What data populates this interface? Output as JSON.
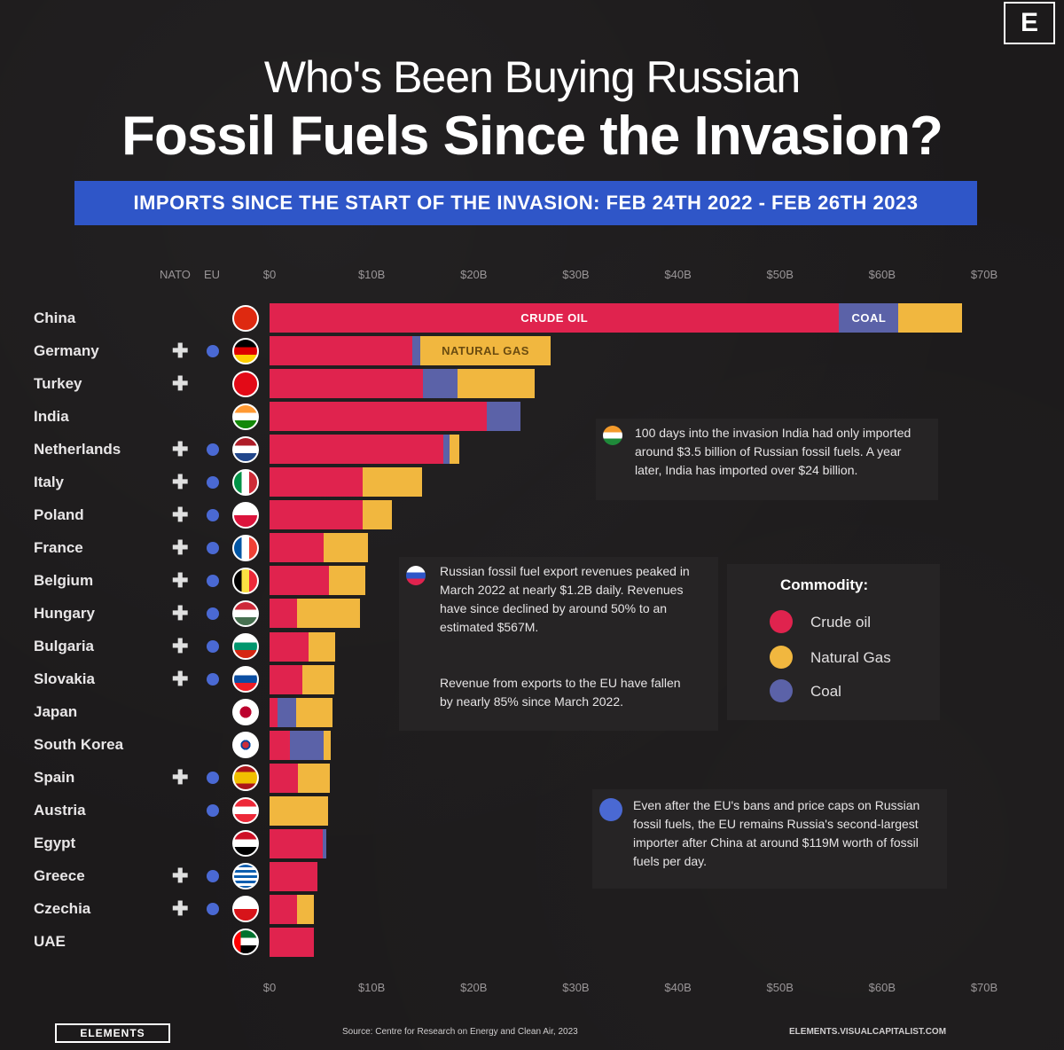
{
  "title_line1": "Who's Been Buying Russian",
  "title_line2": "Fossil Fuels Since the Invasion?",
  "subtitle": "IMPORTS SINCE THE START OF THE INVASION:  FEB 24TH 2022 - FEB 26TH 2023",
  "header_logo": "E",
  "column_headers": {
    "nato": "NATO",
    "eu": "EU"
  },
  "colors": {
    "crude_oil": "#e0234e",
    "natural_gas": "#f1b73f",
    "coal": "#5b62a8",
    "eu": "#4a69d3",
    "banner": "#2f56c8"
  },
  "chart_data": {
    "type": "bar",
    "orientation": "horizontal",
    "stacked": true,
    "xlim": [
      0,
      700
    ],
    "x_ticks": [
      "$0",
      "$10B",
      "$20B",
      "$30B",
      "$40B",
      "$50B",
      "$60B",
      "$70B"
    ],
    "categories": [
      "China",
      "Germany",
      "Turkey",
      "India",
      "Netherlands",
      "Italy",
      "Poland",
      "France",
      "Belgium",
      "Hungary",
      "Bulgaria",
      "Slovakia",
      "Japan",
      "South Korea",
      "Spain",
      "Austria",
      "Egypt",
      "Greece",
      "Czechia",
      "UAE"
    ],
    "nato": [
      false,
      true,
      true,
      false,
      true,
      true,
      true,
      true,
      true,
      true,
      true,
      true,
      false,
      false,
      true,
      false,
      false,
      true,
      true,
      false
    ],
    "eu": [
      false,
      true,
      false,
      false,
      true,
      true,
      true,
      true,
      true,
      true,
      true,
      true,
      false,
      false,
      true,
      true,
      false,
      true,
      true,
      false
    ],
    "series": [
      {
        "name": "Crude oil",
        "values": [
          558,
          140,
          150,
          213,
          170,
          91,
          91,
          53,
          58,
          27,
          38,
          32,
          8,
          20,
          28,
          0,
          52,
          47,
          27,
          43
        ]
      },
      {
        "name": "Natural Gas",
        "values": [
          62,
          127,
          76,
          0,
          10,
          58,
          29,
          43,
          36,
          62,
          26,
          31,
          36,
          7,
          31,
          57,
          0,
          0,
          16,
          0
        ]
      },
      {
        "name": "Coal",
        "values": [
          58,
          8,
          34,
          33,
          6,
          0,
          0,
          0,
          0,
          0,
          0,
          0,
          18,
          33,
          0,
          0,
          4,
          0,
          0,
          0
        ]
      }
    ],
    "segment_labels": {
      "crude": "CRUDE OIL",
      "coal": "COAL",
      "gas": "NATURAL GAS"
    },
    "legend": {
      "title": "Commodity:",
      "items": [
        "Crude oil",
        "Natural Gas",
        "Coal"
      ]
    }
  },
  "notes": {
    "india": "100 days into the invasion India had only imported around $3.5 billion of Russian fossil fuels. A year later, India has imported over $24 billion.",
    "russia_p1": "Russian fossil fuel export revenues peaked in March 2022 at nearly $1.2B daily. Revenues have since declined by around 50% to an estimated $567M.",
    "russia_p2": "Revenue from exports to the EU have fallen by nearly 85% since March 2022.",
    "eu": "Even after the EU's bans and price caps on Russian fossil fuels, the EU remains Russia's second-largest importer after China at around $119M worth of fossil fuels per day."
  },
  "footer": {
    "brand": "ELEMENTS",
    "source": "Source: Centre for Research on Energy and Clean Air, 2023",
    "url": "ELEMENTS.VISUALCAPITALIST.COM"
  }
}
